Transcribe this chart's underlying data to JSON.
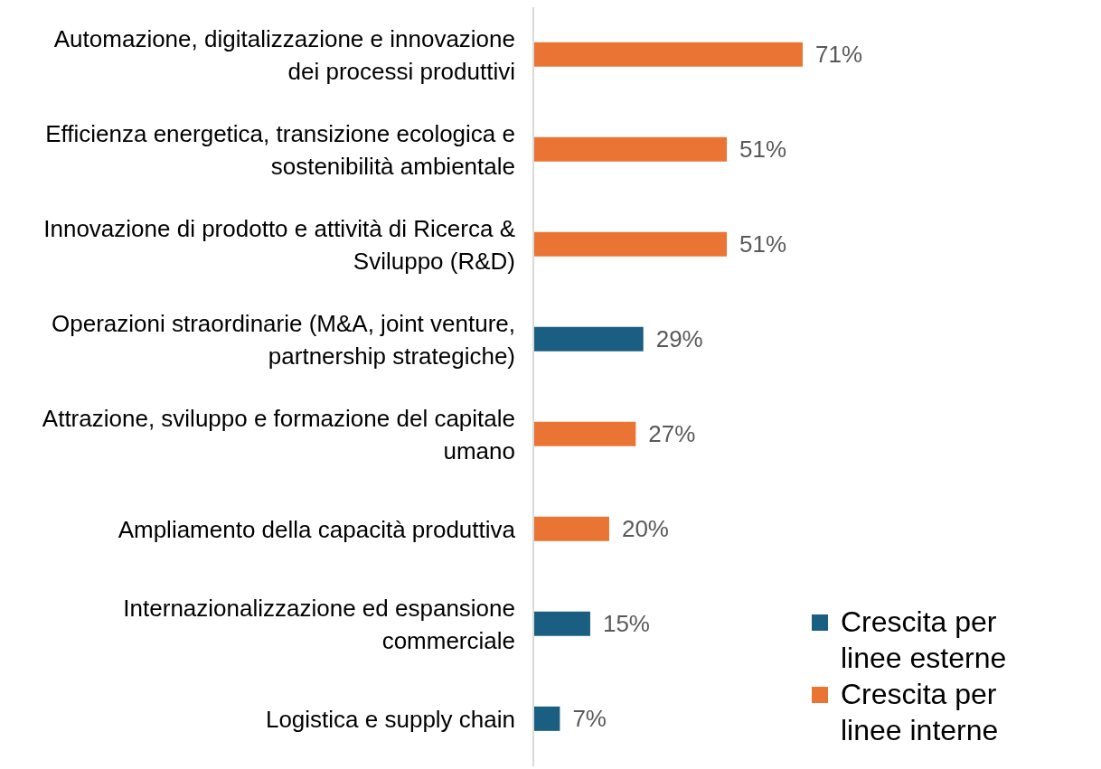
{
  "chart_data": {
    "type": "bar",
    "orientation": "horizontal",
    "stacked": true,
    "legend": "bottom right",
    "data_labels": true,
    "categories": [
      "Automazione, digitalizzazione e innovazione dei processi produttivi",
      "Efficienza energetica, transizione ecologica e sostenibilità ambientale",
      "Innovazione di prodotto e attività di Ricerca & Sviluppo (R&D)",
      "Operazioni straordinarie (M&A, joint venture, partnership strategiche)",
      "Attrazione, sviluppo e formazione del capitale umano",
      "Ampliamento della capacità produttiva",
      "Internazionalizzazione ed espansione commerciale",
      "Logistica e supply chain"
    ],
    "series": [
      {
        "name": "Crescita per linee esterne",
        "color": "#1a5f82",
        "values": [
          null,
          null,
          null,
          29,
          null,
          null,
          15,
          7
        ],
        "value_labels": [
          null,
          null,
          null,
          "29%",
          null,
          null,
          "15%",
          "7%"
        ]
      },
      {
        "name": "Crescita per linee interne",
        "color": "#ea7434",
        "values": [
          71,
          51,
          51,
          null,
          27,
          20,
          null,
          null
        ],
        "value_labels": [
          "71%",
          "51%",
          "51%",
          null,
          "27%",
          "20%",
          null,
          null
        ]
      }
    ]
  }
}
